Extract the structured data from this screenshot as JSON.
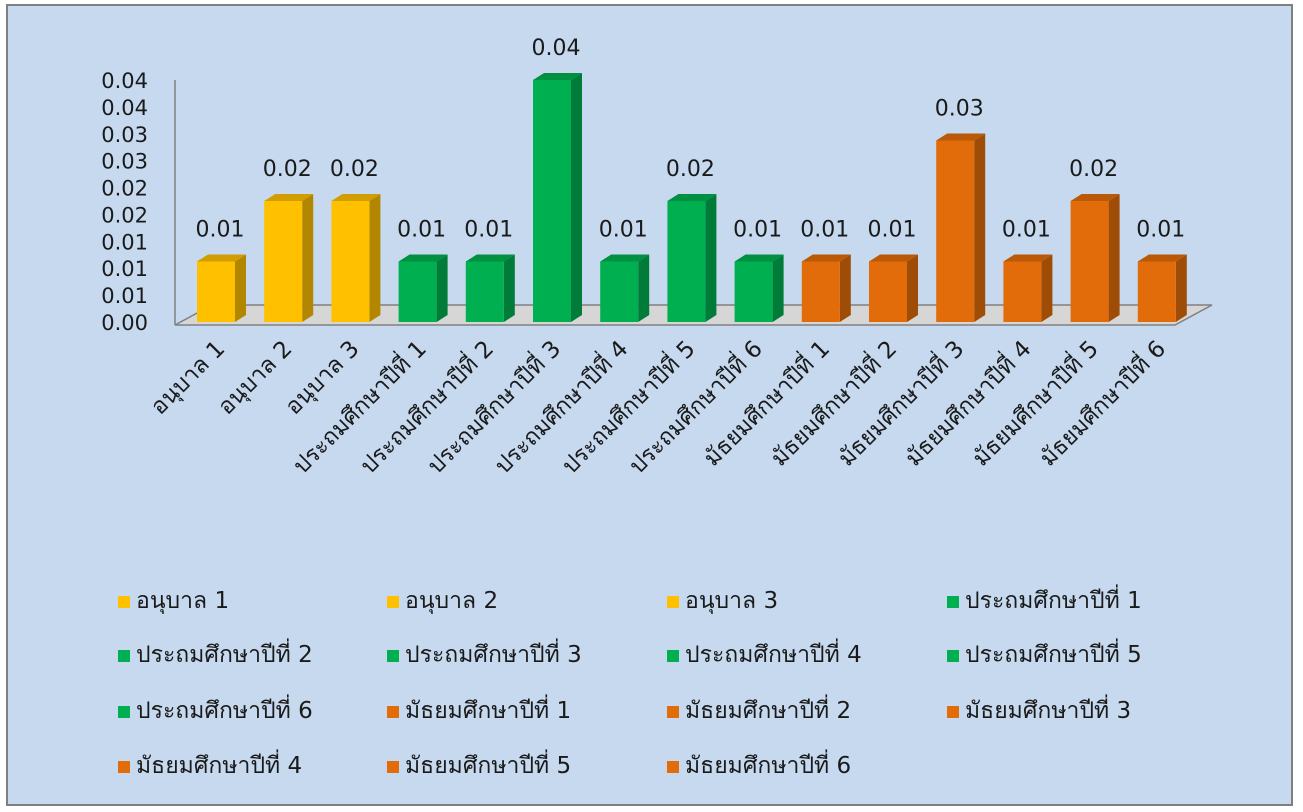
{
  "chart_data": {
    "type": "bar",
    "style": "3d-column",
    "title": "",
    "xlabel": "",
    "ylabel": "",
    "background_color": "#c6d9ef",
    "grid": false,
    "legend_position": "bottom",
    "ylim": [
      0,
      0.04
    ],
    "y_tick_labels": [
      "0.00",
      "0.01",
      "0.01",
      "0.01",
      "0.02",
      "0.02",
      "0.03",
      "0.03",
      "0.04",
      "0.04"
    ],
    "categories": [
      "อนุบาล 1",
      "อนุบาล 2",
      "อนุบาล 3",
      "ประถมศึกษาปีที่ 1",
      "ประถมศึกษาปีที่ 2",
      "ประถมศึกษาปีที่ 3",
      "ประถมศึกษาปีที่ 4",
      "ประถมศึกษาปีที่ 5",
      "ประถมศึกษาปีที่ 6",
      "มัธยมศึกษาปีที่  1",
      "มัธยมศึกษาปีที่  2",
      "มัธยมศึกษาปีที่  3",
      "มัธยมศึกษาปีที่  4",
      "มัธยมศึกษาปีที่  5",
      "มัธยมศึกษาปีที่  6"
    ],
    "values": [
      0.01,
      0.02,
      0.02,
      0.01,
      0.01,
      0.04,
      0.01,
      0.02,
      0.01,
      0.01,
      0.01,
      0.03,
      0.01,
      0.02,
      0.01
    ],
    "value_labels": [
      "0.01",
      "0.02",
      "0.02",
      "0.01",
      "0.01",
      "0.04",
      "0.01",
      "0.02",
      "0.01",
      "0.01",
      "0.01",
      "0.03",
      "0.01",
      "0.02",
      "0.01"
    ],
    "colors": [
      "#ffc000",
      "#ffc000",
      "#ffc000",
      "#00b050",
      "#00b050",
      "#00b050",
      "#00b050",
      "#00b050",
      "#00b050",
      "#e36c0a",
      "#e36c0a",
      "#e36c0a",
      "#e36c0a",
      "#e36c0a",
      "#e36c0a"
    ]
  }
}
